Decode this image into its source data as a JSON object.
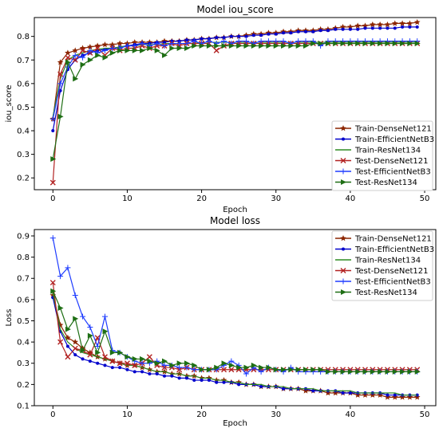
{
  "chart_data": [
    {
      "type": "line",
      "title": "Model iou_score",
      "xlabel": "Epoch",
      "ylabel": "iou_score",
      "xlim": [
        -2.5,
        51.5
      ],
      "ylim": [
        0.15,
        0.88
      ],
      "xticks": [
        0,
        10,
        20,
        30,
        40,
        50
      ],
      "yticks": [
        0.2,
        0.3,
        0.4,
        0.5,
        0.6,
        0.7,
        0.8
      ],
      "legend_position": "lower-right",
      "series": [
        {
          "name": "Train-DenseNet121",
          "color": "#8B2500",
          "marker": "star",
          "values": [
            0.45,
            0.69,
            0.73,
            0.74,
            0.75,
            0.755,
            0.76,
            0.765,
            0.765,
            0.77,
            0.77,
            0.775,
            0.775,
            0.775,
            0.775,
            0.78,
            0.78,
            0.78,
            0.785,
            0.785,
            0.79,
            0.79,
            0.795,
            0.795,
            0.8,
            0.8,
            0.805,
            0.81,
            0.81,
            0.815,
            0.815,
            0.82,
            0.82,
            0.825,
            0.825,
            0.825,
            0.83,
            0.83,
            0.835,
            0.84,
            0.84,
            0.845,
            0.845,
            0.85,
            0.85,
            0.85,
            0.855,
            0.855,
            0.855,
            0.86
          ]
        },
        {
          "name": "Train-EfficientNetB3",
          "color": "#0000CC",
          "marker": "dot",
          "values": [
            0.4,
            0.57,
            0.66,
            0.7,
            0.72,
            0.73,
            0.74,
            0.745,
            0.75,
            0.755,
            0.76,
            0.765,
            0.77,
            0.77,
            0.775,
            0.775,
            0.78,
            0.78,
            0.785,
            0.785,
            0.79,
            0.79,
            0.795,
            0.795,
            0.8,
            0.8,
            0.8,
            0.805,
            0.805,
            0.81,
            0.81,
            0.815,
            0.815,
            0.82,
            0.82,
            0.82,
            0.825,
            0.825,
            0.83,
            0.83,
            0.83,
            0.83,
            0.835,
            0.835,
            0.835,
            0.835,
            0.835,
            0.84,
            0.84,
            0.84
          ]
        },
        {
          "name": "Train-ResNet134",
          "color": "#2E8B22",
          "marker": "none",
          "values": [
            0.46,
            0.62,
            0.7,
            0.72,
            0.73,
            0.74,
            0.745,
            0.75,
            0.75,
            0.755,
            0.76,
            0.76,
            0.765,
            0.765,
            0.765,
            0.77,
            0.77,
            0.77,
            0.77,
            0.77,
            0.775,
            0.775,
            0.775,
            0.775,
            0.775,
            0.775,
            0.775,
            0.775,
            0.775,
            0.775,
            0.775,
            0.775,
            0.775,
            0.775,
            0.775,
            0.775,
            0.775,
            0.775,
            0.775,
            0.775,
            0.775,
            0.775,
            0.775,
            0.775,
            0.775,
            0.775,
            0.775,
            0.775,
            0.775,
            0.775
          ]
        },
        {
          "name": "Test-DenseNet121",
          "color": "#B22222",
          "marker": "x",
          "values": [
            0.18,
            0.64,
            0.71,
            0.7,
            0.74,
            0.73,
            0.75,
            0.72,
            0.75,
            0.74,
            0.75,
            0.75,
            0.76,
            0.75,
            0.76,
            0.76,
            0.77,
            0.76,
            0.77,
            0.77,
            0.77,
            0.77,
            0.74,
            0.76,
            0.77,
            0.77,
            0.77,
            0.77,
            0.77,
            0.77,
            0.77,
            0.77,
            0.77,
            0.77,
            0.77,
            0.77,
            0.77,
            0.77,
            0.77,
            0.77,
            0.77,
            0.77,
            0.77,
            0.77,
            0.77,
            0.77,
            0.77,
            0.77,
            0.77,
            0.77
          ]
        },
        {
          "name": "Test-EfficientNetB3",
          "color": "#1E3CFF",
          "marker": "plus",
          "values": [
            0.45,
            0.6,
            0.67,
            0.72,
            0.71,
            0.74,
            0.73,
            0.74,
            0.75,
            0.75,
            0.76,
            0.76,
            0.77,
            0.76,
            0.77,
            0.76,
            0.77,
            0.77,
            0.77,
            0.78,
            0.77,
            0.78,
            0.77,
            0.78,
            0.77,
            0.78,
            0.78,
            0.77,
            0.78,
            0.78,
            0.78,
            0.78,
            0.77,
            0.78,
            0.78,
            0.78,
            0.76,
            0.78,
            0.78,
            0.78,
            0.78,
            0.78,
            0.78,
            0.78,
            0.78,
            0.78,
            0.78,
            0.78,
            0.78,
            0.78
          ]
        },
        {
          "name": "Test-ResNet134",
          "color": "#1E6E14",
          "marker": "triangle",
          "values": [
            0.28,
            0.46,
            0.69,
            0.62,
            0.68,
            0.7,
            0.72,
            0.71,
            0.73,
            0.74,
            0.74,
            0.74,
            0.74,
            0.75,
            0.74,
            0.72,
            0.75,
            0.75,
            0.75,
            0.76,
            0.76,
            0.76,
            0.76,
            0.76,
            0.76,
            0.76,
            0.76,
            0.76,
            0.76,
            0.76,
            0.76,
            0.76,
            0.76,
            0.76,
            0.76,
            0.77,
            0.77,
            0.77,
            0.77,
            0.77,
            0.77,
            0.77,
            0.77,
            0.77,
            0.77,
            0.77,
            0.77,
            0.77,
            0.77,
            0.77
          ]
        }
      ]
    },
    {
      "type": "line",
      "title": "Model loss",
      "xlabel": "Epoch",
      "ylabel": "Loss",
      "xlim": [
        -2.5,
        51.5
      ],
      "ylim": [
        0.1,
        0.93
      ],
      "xticks": [
        0,
        10,
        20,
        30,
        40,
        50
      ],
      "yticks": [
        0.1,
        0.2,
        0.3,
        0.4,
        0.5,
        0.6,
        0.7,
        0.8,
        0.9
      ],
      "legend_position": "top-right",
      "series": [
        {
          "name": "Train-DenseNet121",
          "color": "#8B2500",
          "marker": "star",
          "values": [
            0.62,
            0.48,
            0.42,
            0.4,
            0.37,
            0.35,
            0.33,
            0.32,
            0.31,
            0.3,
            0.29,
            0.29,
            0.28,
            0.27,
            0.26,
            0.26,
            0.25,
            0.25,
            0.24,
            0.24,
            0.23,
            0.23,
            0.22,
            0.22,
            0.21,
            0.21,
            0.2,
            0.2,
            0.19,
            0.19,
            0.19,
            0.18,
            0.18,
            0.18,
            0.17,
            0.17,
            0.17,
            0.16,
            0.16,
            0.16,
            0.16,
            0.15,
            0.15,
            0.15,
            0.15,
            0.14,
            0.14,
            0.14,
            0.14,
            0.14
          ]
        },
        {
          "name": "Train-EfficientNetB3",
          "color": "#0000CC",
          "marker": "dot",
          "values": [
            0.61,
            0.45,
            0.38,
            0.34,
            0.32,
            0.31,
            0.3,
            0.29,
            0.28,
            0.28,
            0.27,
            0.26,
            0.26,
            0.25,
            0.25,
            0.24,
            0.24,
            0.23,
            0.23,
            0.22,
            0.22,
            0.22,
            0.21,
            0.21,
            0.21,
            0.2,
            0.2,
            0.2,
            0.19,
            0.19,
            0.19,
            0.18,
            0.18,
            0.18,
            0.18,
            0.17,
            0.17,
            0.17,
            0.17,
            0.16,
            0.16,
            0.16,
            0.16,
            0.16,
            0.16,
            0.15,
            0.15,
            0.15,
            0.15,
            0.15
          ]
        },
        {
          "name": "Train-ResNet134",
          "color": "#2E8B22",
          "marker": "none",
          "values": [
            0.63,
            0.46,
            0.4,
            0.37,
            0.35,
            0.34,
            0.33,
            0.32,
            0.31,
            0.3,
            0.29,
            0.29,
            0.28,
            0.27,
            0.26,
            0.26,
            0.25,
            0.25,
            0.24,
            0.24,
            0.23,
            0.23,
            0.22,
            0.22,
            0.21,
            0.21,
            0.2,
            0.2,
            0.2,
            0.19,
            0.19,
            0.19,
            0.18,
            0.18,
            0.18,
            0.18,
            0.17,
            0.17,
            0.17,
            0.17,
            0.17,
            0.16,
            0.16,
            0.16,
            0.16,
            0.16,
            0.16,
            0.15,
            0.15,
            0.15
          ]
        },
        {
          "name": "Test-DenseNet121",
          "color": "#B22222",
          "marker": "x",
          "values": [
            0.68,
            0.4,
            0.33,
            0.37,
            0.36,
            0.34,
            0.42,
            0.33,
            0.31,
            0.3,
            0.3,
            0.29,
            0.3,
            0.33,
            0.29,
            0.28,
            0.28,
            0.27,
            0.28,
            0.27,
            0.27,
            0.27,
            0.27,
            0.27,
            0.27,
            0.27,
            0.27,
            0.27,
            0.27,
            0.27,
            0.27,
            0.27,
            0.27,
            0.27,
            0.27,
            0.27,
            0.27,
            0.27,
            0.27,
            0.27,
            0.27,
            0.27,
            0.27,
            0.27,
            0.27,
            0.27,
            0.27,
            0.27,
            0.27,
            0.27
          ]
        },
        {
          "name": "Test-EfficientNetB3",
          "color": "#1E3CFF",
          "marker": "plus",
          "values": [
            0.89,
            0.71,
            0.75,
            0.62,
            0.52,
            0.47,
            0.38,
            0.52,
            0.36,
            0.35,
            0.33,
            0.31,
            0.3,
            0.3,
            0.31,
            0.29,
            0.29,
            0.28,
            0.28,
            0.27,
            0.27,
            0.27,
            0.27,
            0.29,
            0.31,
            0.29,
            0.25,
            0.28,
            0.26,
            0.28,
            0.27,
            0.26,
            0.28,
            0.26,
            0.26,
            0.26,
            0.26,
            0.26,
            0.26,
            0.26,
            0.26,
            0.26,
            0.26,
            0.26,
            0.26,
            0.26,
            0.26,
            0.26,
            0.26,
            0.26
          ]
        },
        {
          "name": "Test-ResNet134",
          "color": "#1E6E14",
          "marker": "triangle",
          "values": [
            0.64,
            0.56,
            0.46,
            0.51,
            0.36,
            0.43,
            0.35,
            0.45,
            0.35,
            0.35,
            0.33,
            0.32,
            0.32,
            0.31,
            0.3,
            0.31,
            0.29,
            0.3,
            0.3,
            0.29,
            0.27,
            0.27,
            0.28,
            0.3,
            0.29,
            0.28,
            0.28,
            0.29,
            0.28,
            0.28,
            0.27,
            0.27,
            0.27,
            0.27,
            0.27,
            0.27,
            0.27,
            0.26,
            0.26,
            0.26,
            0.26,
            0.26,
            0.26,
            0.26,
            0.26,
            0.26,
            0.26,
            0.26,
            0.26,
            0.26
          ]
        }
      ]
    }
  ]
}
